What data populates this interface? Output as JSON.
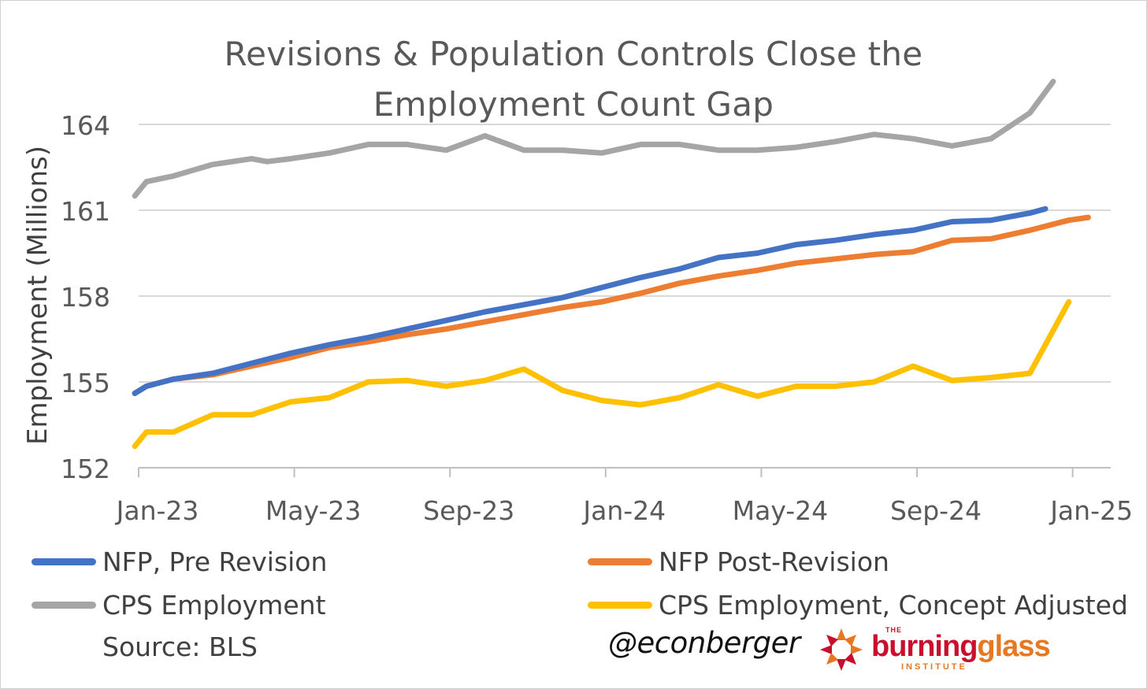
{
  "chart_data": {
    "type": "line",
    "title_line1": "Revisions & Population Controls Close the",
    "title_line2": "Employment Count Gap",
    "ylabel": "Employment (Millions)",
    "ylim": [
      152,
      164
    ],
    "yticks": [
      "164",
      "161",
      "158",
      "155",
      "152"
    ],
    "ytick_values": [
      164,
      161,
      158,
      155,
      152
    ],
    "xticks": [
      "Jan-23",
      "May-23",
      "Sep-23",
      "Jan-24",
      "May-24",
      "Sep-24",
      "Jan-25"
    ],
    "xtick_month_index": [
      0,
      4,
      8,
      12,
      16,
      20,
      24
    ],
    "grid": true,
    "legend_position": "bottom",
    "months": [
      "Jan-23",
      "Feb-23",
      "Mar-23",
      "Apr-23",
      "May-23",
      "Jun-23",
      "Jul-23",
      "Aug-23",
      "Sep-23",
      "Oct-23",
      "Nov-23",
      "Dec-23",
      "Jan-24",
      "Feb-24",
      "Mar-24",
      "Apr-24",
      "May-24",
      "Jun-24",
      "Jul-24",
      "Aug-24",
      "Sep-24",
      "Oct-24",
      "Nov-24",
      "Dec-24",
      "Jan-25"
    ],
    "series": [
      {
        "name": "NFP, Pre Revision",
        "color": "#4472c4",
        "points": [
          [
            -0.1,
            154.6
          ],
          [
            0.2,
            154.85
          ],
          [
            0.9,
            155.1
          ],
          [
            1.9,
            155.3
          ],
          [
            2.9,
            155.65
          ],
          [
            3.9,
            156.0
          ],
          [
            4.9,
            156.3
          ],
          [
            5.9,
            156.55
          ],
          [
            6.9,
            156.85
          ],
          [
            7.9,
            157.15
          ],
          [
            8.9,
            157.45
          ],
          [
            9.9,
            157.7
          ],
          [
            10.9,
            157.95
          ],
          [
            11.9,
            158.3
          ],
          [
            12.9,
            158.65
          ],
          [
            13.9,
            158.95
          ],
          [
            14.9,
            159.35
          ],
          [
            15.9,
            159.5
          ],
          [
            16.9,
            159.8
          ],
          [
            17.9,
            159.95
          ],
          [
            18.9,
            160.15
          ],
          [
            19.9,
            160.3
          ],
          [
            20.9,
            160.6
          ],
          [
            21.9,
            160.65
          ],
          [
            22.9,
            160.9
          ],
          [
            23.3,
            161.05
          ]
        ]
      },
      {
        "name": "NFP Post-Revision",
        "color": "#ed7d31",
        "points": [
          [
            -0.1,
            154.6
          ],
          [
            0.2,
            154.85
          ],
          [
            0.9,
            155.1
          ],
          [
            1.9,
            155.25
          ],
          [
            2.9,
            155.55
          ],
          [
            3.9,
            155.85
          ],
          [
            4.9,
            156.2
          ],
          [
            5.9,
            156.4
          ],
          [
            6.9,
            156.65
          ],
          [
            7.9,
            156.85
          ],
          [
            8.9,
            157.1
          ],
          [
            9.9,
            157.35
          ],
          [
            10.9,
            157.6
          ],
          [
            11.9,
            157.8
          ],
          [
            12.9,
            158.1
          ],
          [
            13.9,
            158.45
          ],
          [
            14.9,
            158.7
          ],
          [
            15.9,
            158.9
          ],
          [
            16.9,
            159.15
          ],
          [
            17.9,
            159.3
          ],
          [
            18.9,
            159.45
          ],
          [
            19.9,
            159.55
          ],
          [
            20.9,
            159.95
          ],
          [
            21.9,
            160.0
          ],
          [
            22.9,
            160.3
          ],
          [
            23.9,
            160.65
          ],
          [
            24.4,
            160.75
          ]
        ]
      },
      {
        "name": "CPS Employment",
        "color": "#a5a5a5",
        "points": [
          [
            -0.1,
            161.5
          ],
          [
            0.2,
            162.0
          ],
          [
            0.9,
            162.2
          ],
          [
            1.9,
            162.6
          ],
          [
            2.9,
            162.8
          ],
          [
            3.3,
            162.7
          ],
          [
            3.9,
            162.8
          ],
          [
            4.9,
            163.0
          ],
          [
            5.9,
            163.3
          ],
          [
            6.9,
            163.3
          ],
          [
            7.9,
            163.1
          ],
          [
            8.9,
            163.6
          ],
          [
            9.9,
            163.1
          ],
          [
            10.9,
            163.1
          ],
          [
            11.9,
            163.0
          ],
          [
            12.9,
            163.3
          ],
          [
            13.9,
            163.3
          ],
          [
            14.9,
            163.1
          ],
          [
            15.9,
            163.1
          ],
          [
            16.9,
            163.2
          ],
          [
            17.9,
            163.4
          ],
          [
            18.9,
            163.65
          ],
          [
            19.9,
            163.5
          ],
          [
            20.9,
            163.25
          ],
          [
            21.9,
            163.5
          ],
          [
            22.9,
            164.4
          ],
          [
            23.5,
            165.5
          ]
        ]
      },
      {
        "name": "CPS Employment, Concept Adjusted",
        "color": "#ffc000",
        "points": [
          [
            -0.1,
            152.75
          ],
          [
            0.2,
            153.25
          ],
          [
            0.9,
            153.25
          ],
          [
            1.9,
            153.85
          ],
          [
            2.9,
            153.85
          ],
          [
            3.9,
            154.3
          ],
          [
            4.9,
            154.45
          ],
          [
            5.9,
            155.0
          ],
          [
            6.9,
            155.05
          ],
          [
            7.9,
            154.85
          ],
          [
            8.9,
            155.05
          ],
          [
            9.9,
            155.45
          ],
          [
            10.9,
            154.7
          ],
          [
            11.9,
            154.35
          ],
          [
            12.9,
            154.2
          ],
          [
            13.9,
            154.45
          ],
          [
            14.9,
            154.9
          ],
          [
            15.9,
            154.5
          ],
          [
            16.9,
            154.85
          ],
          [
            17.9,
            154.85
          ],
          [
            18.9,
            155.0
          ],
          [
            19.9,
            155.55
          ],
          [
            20.9,
            155.05
          ],
          [
            21.9,
            155.15
          ],
          [
            22.9,
            155.3
          ],
          [
            23.9,
            157.8
          ]
        ]
      }
    ],
    "source": "Source: BLS"
  },
  "branding": {
    "handle": "@econberger",
    "logo_small": "THE",
    "logo_word_a": "burning",
    "logo_word_b": "glass",
    "logo_sub": "INSTITUTE"
  }
}
